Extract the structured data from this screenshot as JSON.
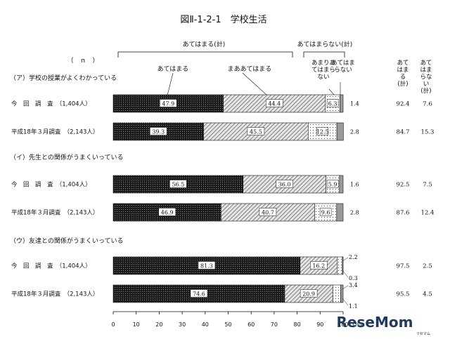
{
  "chart_data": {
    "type": "bar",
    "orientation": "horizontal-stacked",
    "title": "図Ⅱ-1-2-1　学校生活",
    "n_label": "（　ｎ　）",
    "unit_label": "(%)",
    "x_ticks": [
      0,
      10,
      20,
      30,
      40,
      50,
      60,
      70,
      80,
      90,
      100
    ],
    "xlim": [
      0,
      100
    ],
    "group_headers": {
      "applies": "あてはまる(計)",
      "not_applies": "あてはまらない(計)"
    },
    "series": [
      {
        "name": "あてはまる",
        "pattern": "dots-dark"
      },
      {
        "name": "まああてはまる",
        "pattern": "hatch"
      },
      {
        "name": "あまりあてはまらない",
        "pattern": "dots-light"
      },
      {
        "name": "あてはまらない",
        "pattern": "gray"
      }
    ],
    "series_labels": {
      "s1": "あてはまる",
      "s2": "まああてはまる",
      "s3_lines": [
        "あまりあ",
        "てはまら",
        "ない"
      ],
      "s4_lines": [
        "あてはま",
        "らない"
      ]
    },
    "summary_headers": {
      "applies_lines": [
        "あて",
        "はま",
        "る",
        "(計)"
      ],
      "not_applies_lines": [
        "あて",
        "はま",
        "らな",
        "い",
        "(計)"
      ]
    },
    "groups": [
      {
        "label": "（ア）学校の授業がよくわかっている",
        "rows": [
          {
            "label": "今　回　調　査　（1,404人）",
            "values": [
              47.9,
              44.4,
              6.3,
              1.4
            ],
            "label4": [
              "1.4"
            ],
            "sum_applies": "92.4",
            "sum_not": "7.6"
          },
          {
            "label": "平成18年３月調査　（2,143人）",
            "values": [
              39.3,
              45.5,
              12.5,
              2.8
            ],
            "label4": [
              "2.8"
            ],
            "sum_applies": "84.7",
            "sum_not": "15.3"
          }
        ]
      },
      {
        "label": "（イ）先生との関係がうまくいっている",
        "rows": [
          {
            "label": "今　回　調　査　（1,404人）",
            "values": [
              56.5,
              36.0,
              5.9,
              1.6
            ],
            "label4": [
              "1.6"
            ],
            "sum_applies": "92.5",
            "sum_not": "7.5"
          },
          {
            "label": "平成18年３月調査　（2,143人）",
            "values": [
              46.9,
              40.7,
              9.6,
              2.8
            ],
            "label4": [
              "2.8"
            ],
            "sum_applies": "87.6",
            "sum_not": "12.4"
          }
        ]
      },
      {
        "label": "（ウ）友達との関係がうまくいっている",
        "rows": [
          {
            "label": "今　回　調　査　（1,404人）",
            "values": [
              81.3,
              16.2,
              2.2,
              0.3
            ],
            "label3_outside": "2.2",
            "label4": [
              "0.3"
            ],
            "sum_applies": "97.5",
            "sum_not": "2.5"
          },
          {
            "label": "平成18年３月調査　（2,143人）",
            "values": [
              74.6,
              20.9,
              3.4,
              1.1
            ],
            "label3_outside": "3.4",
            "label4": [
              "1.1"
            ],
            "sum_applies": "95.5",
            "sum_not": "4.5"
          }
        ]
      }
    ]
  },
  "watermark": {
    "text": "ReseMom",
    "sub": "リセマム",
    "color": "#1f3a5c"
  }
}
